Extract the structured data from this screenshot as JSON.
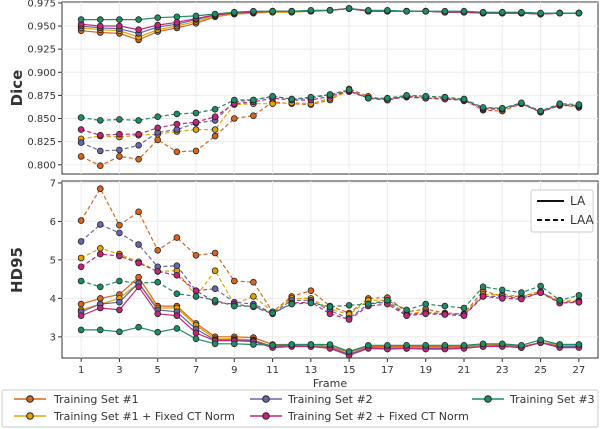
{
  "chart_data": [
    {
      "type": "line",
      "ylabel": "Dice",
      "ylim": [
        0.79,
        0.976
      ],
      "yticks": [
        0.8,
        0.825,
        0.85,
        0.875,
        0.9,
        0.925,
        0.95,
        0.975
      ],
      "ytick_labels": [
        "0.800",
        "0.825",
        "0.850",
        "0.875",
        "0.900",
        "0.925",
        "0.950",
        "0.975"
      ],
      "xlim": [
        0,
        28
      ],
      "grid": true,
      "series": [
        {
          "name": "Training Set #1",
          "line": "LA",
          "color": "#d9661f",
          "values": [
            0.945,
            0.943,
            0.942,
            0.935,
            0.944,
            0.948,
            0.953,
            0.96,
            0.963,
            0.964,
            0.965,
            0.965,
            0.966,
            0.967,
            0.969,
            0.966,
            0.966,
            0.966,
            0.966,
            0.965,
            0.965,
            0.964,
            0.964,
            0.964,
            0.963,
            0.964,
            0.964
          ]
        },
        {
          "name": "Training Set #1 + Fixed CT Norm",
          "line": "LA",
          "color": "#e0a400",
          "values": [
            0.948,
            0.946,
            0.945,
            0.938,
            0.946,
            0.95,
            0.955,
            0.961,
            0.963,
            0.964,
            0.965,
            0.965,
            0.966,
            0.967,
            0.969,
            0.966,
            0.966,
            0.966,
            0.966,
            0.965,
            0.965,
            0.964,
            0.964,
            0.964,
            0.963,
            0.964,
            0.964
          ]
        },
        {
          "name": "Training Set #2",
          "line": "LA",
          "color": "#6a67a8",
          "values": [
            0.95,
            0.948,
            0.947,
            0.942,
            0.949,
            0.952,
            0.957,
            0.962,
            0.964,
            0.965,
            0.966,
            0.966,
            0.966,
            0.967,
            0.969,
            0.966,
            0.966,
            0.966,
            0.966,
            0.965,
            0.965,
            0.964,
            0.964,
            0.964,
            0.963,
            0.964,
            0.964
          ]
        },
        {
          "name": "Training Set #2 + Fixed CT Norm",
          "line": "LA",
          "color": "#c2267a",
          "values": [
            0.952,
            0.95,
            0.95,
            0.946,
            0.951,
            0.954,
            0.958,
            0.962,
            0.964,
            0.965,
            0.966,
            0.966,
            0.966,
            0.967,
            0.969,
            0.966,
            0.966,
            0.966,
            0.966,
            0.965,
            0.965,
            0.964,
            0.964,
            0.964,
            0.963,
            0.964,
            0.964
          ]
        },
        {
          "name": "Training Set #3",
          "line": "LA",
          "color": "#1e8c66",
          "values": [
            0.957,
            0.957,
            0.957,
            0.957,
            0.959,
            0.96,
            0.961,
            0.963,
            0.965,
            0.966,
            0.966,
            0.966,
            0.967,
            0.967,
            0.969,
            0.967,
            0.967,
            0.966,
            0.966,
            0.966,
            0.966,
            0.965,
            0.965,
            0.965,
            0.964,
            0.964,
            0.964
          ]
        },
        {
          "name": "Training Set #1",
          "line": "LAA",
          "color": "#d9661f",
          "values": [
            0.809,
            0.799,
            0.809,
            0.806,
            0.827,
            0.814,
            0.815,
            0.831,
            0.85,
            0.853,
            0.868,
            0.866,
            0.865,
            0.87,
            0.882,
            0.874,
            0.87,
            0.875,
            0.874,
            0.873,
            0.87,
            0.859,
            0.858,
            0.866,
            0.857,
            0.865,
            0.862
          ]
        },
        {
          "name": "Training Set #1 + Fixed CT Norm",
          "line": "LAA",
          "color": "#e0a400",
          "values": [
            0.828,
            0.831,
            0.83,
            0.832,
            0.833,
            0.836,
            0.838,
            0.838,
            0.865,
            0.866,
            0.866,
            0.867,
            0.866,
            0.872,
            0.879,
            0.872,
            0.87,
            0.874,
            0.872,
            0.871,
            0.871,
            0.86,
            0.86,
            0.866,
            0.857,
            0.865,
            0.863
          ]
        },
        {
          "name": "Training Set #2",
          "line": "LAA",
          "color": "#6a67a8",
          "values": [
            0.824,
            0.815,
            0.816,
            0.821,
            0.835,
            0.838,
            0.845,
            0.848,
            0.868,
            0.87,
            0.874,
            0.871,
            0.872,
            0.876,
            0.88,
            0.872,
            0.871,
            0.873,
            0.872,
            0.872,
            0.869,
            0.861,
            0.86,
            0.866,
            0.857,
            0.864,
            0.864
          ]
        },
        {
          "name": "Training Set #2 + Fixed CT Norm",
          "line": "LAA",
          "color": "#c2267a",
          "values": [
            0.838,
            0.832,
            0.833,
            0.833,
            0.84,
            0.844,
            0.846,
            0.852,
            0.866,
            0.868,
            0.872,
            0.87,
            0.87,
            0.874,
            0.88,
            0.872,
            0.87,
            0.874,
            0.872,
            0.871,
            0.87,
            0.861,
            0.861,
            0.866,
            0.857,
            0.865,
            0.864
          ]
        },
        {
          "name": "Training Set #3",
          "line": "LAA",
          "color": "#1e8c66",
          "values": [
            0.851,
            0.848,
            0.849,
            0.848,
            0.852,
            0.855,
            0.856,
            0.86,
            0.87,
            0.87,
            0.874,
            0.871,
            0.873,
            0.876,
            0.881,
            0.872,
            0.872,
            0.875,
            0.874,
            0.873,
            0.871,
            0.862,
            0.861,
            0.867,
            0.858,
            0.866,
            0.865
          ]
        }
      ]
    },
    {
      "type": "line",
      "ylabel": "HD95",
      "xlabel": "Frame",
      "ylim": [
        2.45,
        7.05
      ],
      "yticks": [
        3,
        4,
        5,
        6,
        7
      ],
      "ytick_labels": [
        "3",
        "4",
        "5",
        "6",
        "7"
      ],
      "xlim": [
        0,
        28
      ],
      "xticks": [
        1,
        3,
        5,
        7,
        9,
        11,
        13,
        15,
        17,
        19,
        21,
        23,
        25,
        27
      ],
      "xtick_labels": [
        "1",
        "3",
        "5",
        "7",
        "9",
        "11",
        "13",
        "15",
        "17",
        "19",
        "21",
        "23",
        "25",
        "27"
      ],
      "grid": true,
      "series": [
        {
          "name": "Training Set #1",
          "line": "LA",
          "color": "#d9661f",
          "values": [
            3.85,
            4.0,
            4.1,
            4.55,
            3.8,
            3.8,
            3.35,
            3.0,
            3.0,
            2.98,
            2.8,
            2.8,
            2.8,
            2.75,
            2.6,
            2.75,
            2.75,
            2.75,
            2.75,
            2.75,
            2.75,
            2.8,
            2.8,
            2.75,
            2.85,
            2.8,
            2.8
          ]
        },
        {
          "name": "Training Set #1 + Fixed CT Norm",
          "line": "LA",
          "color": "#e0a400",
          "values": [
            3.7,
            3.85,
            4.0,
            4.4,
            3.75,
            3.75,
            3.3,
            2.95,
            2.95,
            2.92,
            2.75,
            2.78,
            2.78,
            2.72,
            2.55,
            2.72,
            2.72,
            2.72,
            2.72,
            2.72,
            2.72,
            2.78,
            2.78,
            2.72,
            2.85,
            2.78,
            2.78
          ]
        },
        {
          "name": "Training Set #2",
          "line": "LA",
          "color": "#6a67a8",
          "values": [
            3.65,
            3.85,
            3.9,
            4.4,
            3.7,
            3.65,
            3.2,
            2.92,
            2.92,
            2.9,
            2.75,
            2.78,
            2.75,
            2.72,
            2.55,
            2.72,
            2.7,
            2.7,
            2.7,
            2.7,
            2.72,
            2.75,
            2.78,
            2.72,
            2.85,
            2.75,
            2.75
          ]
        },
        {
          "name": "Training Set #2 + Fixed CT Norm",
          "line": "LA",
          "color": "#c2267a",
          "values": [
            3.55,
            3.75,
            3.7,
            4.3,
            3.6,
            3.55,
            3.1,
            2.9,
            2.9,
            2.88,
            2.72,
            2.75,
            2.75,
            2.7,
            2.52,
            2.7,
            2.68,
            2.7,
            2.68,
            2.68,
            2.7,
            2.75,
            2.75,
            2.72,
            2.85,
            2.72,
            2.72
          ]
        },
        {
          "name": "Training Set #3",
          "line": "LA",
          "color": "#1e8c66",
          "values": [
            3.18,
            3.18,
            3.13,
            3.25,
            3.12,
            3.22,
            2.95,
            2.82,
            2.82,
            2.8,
            2.78,
            2.8,
            2.8,
            2.8,
            2.62,
            2.78,
            2.78,
            2.78,
            2.78,
            2.78,
            2.78,
            2.82,
            2.82,
            2.78,
            2.92,
            2.8,
            2.8
          ]
        },
        {
          "name": "Training Set #1",
          "line": "LAA",
          "color": "#d9661f",
          "values": [
            6.02,
            6.85,
            5.9,
            6.25,
            5.25,
            5.58,
            5.12,
            5.18,
            4.45,
            4.42,
            3.65,
            4.05,
            4.2,
            3.8,
            3.62,
            4.0,
            4.02,
            3.65,
            3.72,
            3.62,
            3.6,
            4.2,
            4.05,
            4.05,
            4.18,
            3.88,
            3.9
          ]
        },
        {
          "name": "Training Set #1 + Fixed CT Norm",
          "line": "LAA",
          "color": "#e0a400",
          "values": [
            5.05,
            5.3,
            5.15,
            4.95,
            4.7,
            4.72,
            4.05,
            4.72,
            3.85,
            4.05,
            3.65,
            4.0,
            4.0,
            3.72,
            3.58,
            3.95,
            3.95,
            3.6,
            3.65,
            3.6,
            3.6,
            4.1,
            4.1,
            4.05,
            4.15,
            3.95,
            3.95
          ]
        },
        {
          "name": "Training Set #2",
          "line": "LAA",
          "color": "#6a67a8",
          "values": [
            5.48,
            5.92,
            5.7,
            5.4,
            4.82,
            4.85,
            4.2,
            4.25,
            3.9,
            3.85,
            3.62,
            3.95,
            3.95,
            3.68,
            3.48,
            3.85,
            3.9,
            3.58,
            3.62,
            3.6,
            3.58,
            4.05,
            4.05,
            4.0,
            4.15,
            3.9,
            3.92
          ]
        },
        {
          "name": "Training Set #2 + Fixed CT Norm",
          "line": "LAA",
          "color": "#c2267a",
          "values": [
            4.82,
            5.15,
            5.1,
            4.92,
            4.7,
            4.6,
            4.2,
            3.9,
            3.85,
            3.78,
            3.6,
            3.88,
            3.9,
            3.6,
            3.45,
            3.8,
            3.85,
            3.55,
            3.6,
            3.58,
            3.55,
            4.05,
            4.0,
            3.98,
            4.15,
            3.88,
            3.9
          ]
        },
        {
          "name": "Training Set #3",
          "line": "LAA",
          "color": "#1e8c66",
          "values": [
            4.45,
            4.3,
            4.45,
            4.4,
            4.42,
            4.12,
            4.05,
            3.95,
            3.8,
            3.8,
            3.62,
            3.85,
            3.88,
            3.78,
            3.82,
            3.85,
            3.95,
            3.7,
            3.85,
            3.8,
            3.75,
            4.3,
            4.22,
            4.15,
            4.32,
            3.95,
            4.08
          ]
        }
      ]
    }
  ],
  "legend_lines": [
    {
      "label": "LA",
      "style": "solid"
    },
    {
      "label": "LAA",
      "style": "dashed"
    }
  ],
  "legend_sets": [
    {
      "label": "Training Set #1",
      "color": "#d9661f"
    },
    {
      "label": "Training Set #1 + Fixed CT Norm",
      "color": "#e0a400"
    },
    {
      "label": "Training Set #2",
      "color": "#6a67a8"
    },
    {
      "label": "Training Set #2 + Fixed CT Norm",
      "color": "#c2267a"
    },
    {
      "label": "Training Set #3",
      "color": "#1e8c66"
    }
  ]
}
